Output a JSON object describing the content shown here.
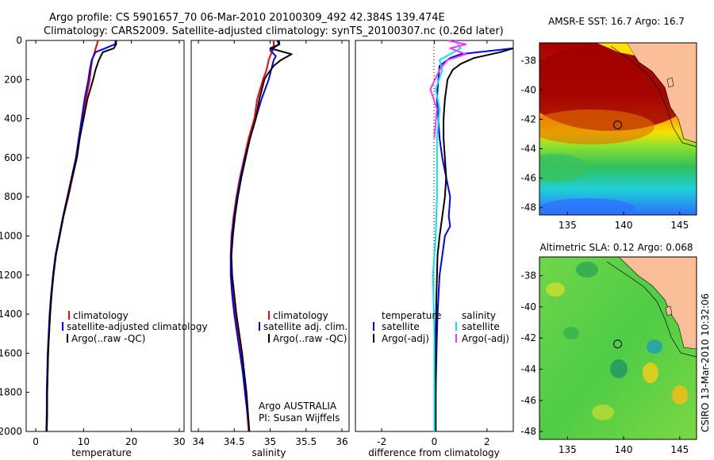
{
  "title_line1": "Argo profile: CS 5901657_70 06-Mar-2010 20100309_492 42.384S 139.474E",
  "title_line2": "Climatology: CARS2009. Satellite-adjusted climatology: synTS_20100307.nc (0.26d later)",
  "credit_line1": "Argo AUSTRALIA",
  "credit_line2": "PI: Susan Wijffels",
  "side_stamp": "CSIRO 13-Mar-2010 10:32:06",
  "colors": {
    "climatology": "#ff0000",
    "satellite": "#0000ff",
    "argo": "#000000",
    "argo_salinity_diff": "#ff33ff",
    "satellite_salinity_diff": "#00e5ee"
  },
  "chart_data": [
    {
      "type": "line",
      "name": "temperature-profile",
      "xlabel": "temperature",
      "xlim": [
        -2,
        31
      ],
      "ylim": [
        2000,
        0
      ],
      "xticks": [
        0,
        10,
        20,
        30
      ],
      "yticks": [
        0,
        200,
        400,
        600,
        800,
        1000,
        1200,
        1400,
        1600,
        1800,
        2000
      ],
      "legend": [
        "climatology",
        "satellite-adjusted climatology",
        "Argo(..raw -QC)"
      ],
      "series": [
        {
          "name": "climatology",
          "color": "#ff0000",
          "points": [
            [
              13,
              0
            ],
            [
              12.8,
              20
            ],
            [
              12.3,
              60
            ],
            [
              11.8,
              100
            ],
            [
              11.5,
              150
            ],
            [
              11.3,
              200
            ],
            [
              10.5,
              300
            ],
            [
              9.8,
              400
            ],
            [
              9.2,
              500
            ],
            [
              8.6,
              600
            ],
            [
              7.7,
              700
            ],
            [
              6.8,
              800
            ],
            [
              5.8,
              900
            ],
            [
              5.0,
              1000
            ],
            [
              4.2,
              1100
            ],
            [
              3.7,
              1200
            ],
            [
              3.3,
              1300
            ],
            [
              3.0,
              1400
            ],
            [
              2.8,
              1500
            ],
            [
              2.6,
              1600
            ],
            [
              2.5,
              1700
            ],
            [
              2.4,
              1800
            ],
            [
              2.4,
              1900
            ],
            [
              2.3,
              2000
            ]
          ]
        },
        {
          "name": "satellite-adjusted climatology",
          "color": "#0000ff",
          "points": [
            [
              16.6,
              0
            ],
            [
              16.7,
              10
            ],
            [
              16.5,
              20
            ],
            [
              14.5,
              40
            ],
            [
              12.5,
              60
            ],
            [
              11.7,
              100
            ],
            [
              11.3,
              150
            ],
            [
              11.0,
              200
            ],
            [
              10.2,
              300
            ],
            [
              9.6,
              400
            ],
            [
              9.0,
              500
            ],
            [
              8.4,
              600
            ],
            [
              7.5,
              700
            ],
            [
              6.6,
              800
            ],
            [
              5.7,
              900
            ],
            [
              4.9,
              1000
            ],
            [
              4.1,
              1100
            ],
            [
              3.6,
              1200
            ],
            [
              3.2,
              1300
            ],
            [
              2.9,
              1400
            ],
            [
              2.7,
              1500
            ],
            [
              2.5,
              1600
            ],
            [
              2.4,
              1700
            ],
            [
              2.3,
              1800
            ],
            [
              2.3,
              1900
            ],
            [
              2.2,
              2000
            ]
          ]
        },
        {
          "name": "Argo(..raw -QC)",
          "color": "#000000",
          "points": [
            [
              16.8,
              0
            ],
            [
              16.8,
              20
            ],
            [
              16.3,
              40
            ],
            [
              14.0,
              60
            ],
            [
              13.2,
              100
            ],
            [
              12.5,
              150
            ],
            [
              12.0,
              200
            ],
            [
              10.8,
              300
            ],
            [
              10.0,
              400
            ],
            [
              9.2,
              500
            ],
            [
              8.6,
              600
            ],
            [
              7.6,
              700
            ],
            [
              6.7,
              800
            ],
            [
              5.8,
              900
            ],
            [
              5.0,
              1000
            ],
            [
              4.2,
              1100
            ],
            [
              3.7,
              1200
            ],
            [
              3.3,
              1300
            ],
            [
              3.0,
              1400
            ],
            [
              2.8,
              1500
            ],
            [
              2.6,
              1600
            ],
            [
              2.5,
              1700
            ],
            [
              2.4,
              1800
            ],
            [
              2.4,
              1900
            ],
            [
              2.3,
              2000
            ]
          ]
        }
      ]
    },
    {
      "type": "line",
      "name": "salinity-profile",
      "xlabel": "salinity",
      "xlim": [
        33.9,
        36.1
      ],
      "ylim": [
        2000,
        0
      ],
      "xticks": [
        34,
        34.5,
        35,
        35.5,
        36
      ],
      "legend": [
        "climatology",
        "satellite adj. clim.",
        "Argo(..raw -QC)"
      ],
      "series": [
        {
          "name": "climatology",
          "color": "#ff0000",
          "points": [
            [
              35.05,
              0
            ],
            [
              35.05,
              40
            ],
            [
              35.0,
              80
            ],
            [
              34.98,
              100
            ],
            [
              34.95,
              150
            ],
            [
              34.9,
              200
            ],
            [
              34.82,
              300
            ],
            [
              34.78,
              400
            ],
            [
              34.7,
              500
            ],
            [
              34.64,
              600
            ],
            [
              34.58,
              700
            ],
            [
              34.53,
              800
            ],
            [
              34.49,
              900
            ],
            [
              34.46,
              1000
            ],
            [
              34.45,
              1100
            ],
            [
              34.46,
              1200
            ],
            [
              34.49,
              1300
            ],
            [
              34.52,
              1400
            ],
            [
              34.56,
              1500
            ],
            [
              34.6,
              1600
            ],
            [
              34.63,
              1700
            ],
            [
              34.66,
              1800
            ],
            [
              34.68,
              1900
            ],
            [
              34.7,
              2000
            ]
          ]
        },
        {
          "name": "satellite adj. clim.",
          "color": "#0000ff",
          "points": [
            [
              35.1,
              0
            ],
            [
              35.12,
              20
            ],
            [
              35.0,
              50
            ],
            [
              35.08,
              80
            ],
            [
              35.05,
              100
            ],
            [
              34.98,
              200
            ],
            [
              34.88,
              300
            ],
            [
              34.8,
              400
            ],
            [
              34.72,
              500
            ],
            [
              34.65,
              600
            ],
            [
              34.59,
              700
            ],
            [
              34.54,
              800
            ],
            [
              34.5,
              900
            ],
            [
              34.47,
              1000
            ],
            [
              34.45,
              1100
            ],
            [
              34.45,
              1200
            ],
            [
              34.47,
              1300
            ],
            [
              34.5,
              1400
            ],
            [
              34.54,
              1500
            ],
            [
              34.58,
              1600
            ],
            [
              34.62,
              1700
            ],
            [
              34.65,
              1800
            ],
            [
              34.68,
              1900
            ],
            [
              34.71,
              2000
            ]
          ]
        },
        {
          "name": "Argo(..raw -QC)",
          "color": "#000000",
          "points": [
            [
              35.12,
              0
            ],
            [
              35.13,
              20
            ],
            [
              35.0,
              40
            ],
            [
              35.3,
              70
            ],
            [
              35.15,
              100
            ],
            [
              35.05,
              130
            ],
            [
              34.95,
              180
            ],
            [
              34.92,
              200
            ],
            [
              34.85,
              300
            ],
            [
              34.8,
              400
            ],
            [
              34.72,
              500
            ],
            [
              34.66,
              600
            ],
            [
              34.6,
              700
            ],
            [
              34.55,
              800
            ],
            [
              34.51,
              900
            ],
            [
              34.48,
              1000
            ],
            [
              34.46,
              1100
            ],
            [
              34.47,
              1200
            ],
            [
              34.5,
              1300
            ],
            [
              34.53,
              1400
            ],
            [
              34.57,
              1500
            ],
            [
              34.61,
              1600
            ],
            [
              34.64,
              1700
            ],
            [
              34.67,
              1800
            ],
            [
              34.69,
              1900
            ],
            [
              34.71,
              2000
            ]
          ]
        }
      ]
    },
    {
      "type": "line",
      "name": "difference-profile",
      "xlabel": "difference from climatology",
      "xlim": [
        -3,
        3
      ],
      "ylim": [
        2000,
        0
      ],
      "xticks": [
        -2,
        0,
        2
      ],
      "legend_temperature_header": "temperature",
      "legend_salinity_header": "salinity",
      "legend_temperature": [
        "satellite",
        "Argo(-adj)"
      ],
      "legend_salinity": [
        "satellite",
        "Argo(-adj)"
      ],
      "series": [
        {
          "name": "temperature satellite",
          "color": "#0000ff",
          "points": [
            [
              3.6,
              40
            ],
            [
              1.0,
              70
            ],
            [
              0.6,
              90
            ],
            [
              0.2,
              130
            ],
            [
              0.15,
              200
            ],
            [
              0.1,
              300
            ],
            [
              0.15,
              400
            ],
            [
              0.2,
              500
            ],
            [
              0.3,
              600
            ],
            [
              0.45,
              700
            ],
            [
              0.6,
              800
            ],
            [
              0.55,
              900
            ],
            [
              0.6,
              950
            ],
            [
              0.4,
              1000
            ],
            [
              0.3,
              1100
            ],
            [
              0.2,
              1200
            ],
            [
              0.12,
              1400
            ],
            [
              0.08,
              1600
            ],
            [
              0.05,
              1800
            ],
            [
              0.05,
              2000
            ]
          ]
        },
        {
          "name": "temperature Argo(-adj)",
          "color": "#000000",
          "points": [
            [
              3.6,
              40
            ],
            [
              2.5,
              60
            ],
            [
              1.5,
              90
            ],
            [
              1.0,
              120
            ],
            [
              0.7,
              150
            ],
            [
              0.5,
              200
            ],
            [
              0.4,
              300
            ],
            [
              0.35,
              400
            ],
            [
              0.35,
              500
            ],
            [
              0.4,
              600
            ],
            [
              0.45,
              700
            ],
            [
              0.4,
              800
            ],
            [
              0.3,
              900
            ],
            [
              0.2,
              1000
            ],
            [
              0.12,
              1100
            ],
            [
              0.08,
              1300
            ],
            [
              0.05,
              1500
            ],
            [
              0.05,
              1800
            ],
            [
              0.05,
              2000
            ]
          ]
        },
        {
          "name": "salinity satellite",
          "color": "#00e5ee",
          "points": [
            [
              0.8,
              0
            ],
            [
              1.0,
              40
            ],
            [
              0.2,
              100
            ],
            [
              0.3,
              150
            ],
            [
              0.05,
              250
            ],
            [
              0.2,
              350
            ],
            [
              0.1,
              500
            ],
            [
              0.1,
              800
            ],
            [
              0.05,
              1000
            ],
            [
              -0.05,
              1200
            ],
            [
              0,
              1500
            ],
            [
              0,
              1800
            ],
            [
              0,
              2000
            ]
          ]
        },
        {
          "name": "salinity Argo(-adj)",
          "color": "#ff33ff",
          "points": [
            [
              0.5,
              0
            ],
            [
              1.2,
              20
            ],
            [
              0.6,
              40
            ],
            [
              1.2,
              70
            ],
            [
              0.5,
              100
            ],
            [
              0.2,
              150
            ],
            [
              -0.15,
              250
            ],
            [
              0.1,
              350
            ],
            [
              0,
              500
            ]
          ]
        }
      ]
    },
    {
      "type": "heatmap",
      "name": "sst-map",
      "title": "AMSR-E SST: 16.7 Argo: 16.7",
      "xlim": [
        132.5,
        146.5
      ],
      "ylim": [
        -48.5,
        -36.8
      ],
      "xticks": [
        135,
        140,
        145
      ],
      "yticks": [
        -38,
        -40,
        -42,
        -44,
        -46,
        -48
      ],
      "argo_marker": {
        "lon": 139.47,
        "lat": -42.38
      }
    },
    {
      "type": "heatmap",
      "name": "sla-map",
      "title": "Altimetric SLA: 0.12 Argo: 0.068",
      "xlim": [
        132.5,
        146.5
      ],
      "ylim": [
        -48.5,
        -36.8
      ],
      "xticks": [
        135,
        140,
        145
      ],
      "yticks": [
        -38,
        -40,
        -42,
        -44,
        -46,
        -48
      ],
      "argo_marker": {
        "lon": 139.47,
        "lat": -42.38
      }
    }
  ]
}
